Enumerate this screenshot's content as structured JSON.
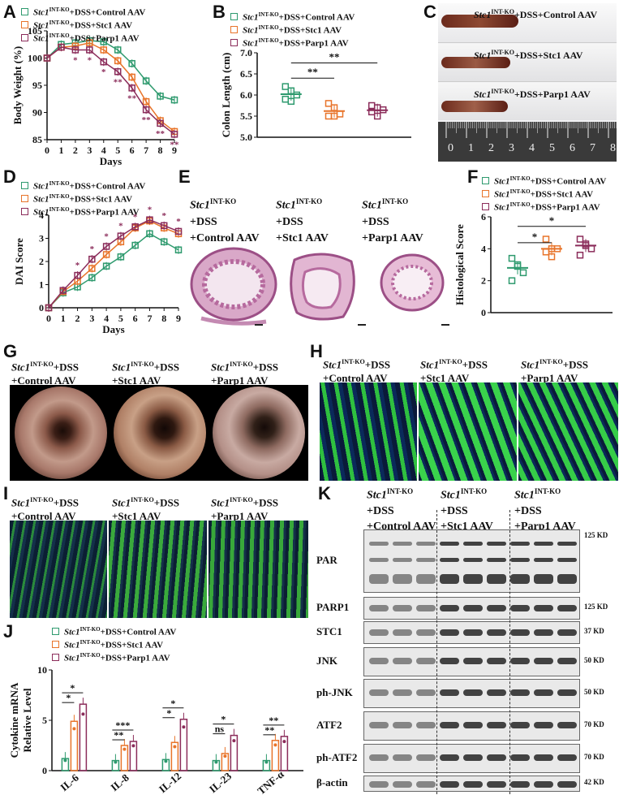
{
  "panels": {
    "A": "A",
    "B": "B",
    "C": "C",
    "D": "D",
    "E": "E",
    "F": "F",
    "G": "G",
    "H": "H",
    "I": "I",
    "J": "J",
    "K": "K"
  },
  "gene": "Stc1",
  "sup": "INT-KO",
  "legend": {
    "control": "+DSS+Control AAV",
    "stc1": "+DSS+Stc1 AAV",
    "parp1": "+DSS+Parp1 AAV"
  },
  "colors": {
    "control": "#2e9a6e",
    "stc1": "#e8742a",
    "parp1": "#8b2c5a"
  },
  "conditions": {
    "dss": "+DSS",
    "control_aav": "+Control AAV",
    "stc1_aav": "+Stc1 AAV",
    "parp1_aav": "+Parp1 AAV",
    "dss_control": "+DSS+Control AAV",
    "dss_stc1": "+DSS+Stc1 AAV",
    "dss_parp1": "+DSS+Parp1 AAV",
    "short_dss": "+DSS",
    "short_control": "+Control AAV",
    "short_stc1": "+Stc1 AAV",
    "short_parp1": "+Parp1 AAV"
  },
  "chart_data": [
    {
      "id": "A",
      "type": "line",
      "xlabel": "Days",
      "ylabel": "Body Weight (%)",
      "x": [
        0,
        1,
        2,
        3,
        4,
        5,
        6,
        7,
        8,
        9
      ],
      "ylim": [
        85,
        105
      ],
      "yticks": [
        85,
        90,
        95,
        100,
        105
      ],
      "series": [
        {
          "name": "Stc1 INT-KO+DSS+Control AAV",
          "values": [
            100,
            102.5,
            102.8,
            103.2,
            103,
            101.5,
            99,
            95.8,
            93,
            92.3
          ]
        },
        {
          "name": "Stc1 INT-KO+DSS+Stc1 AAV",
          "values": [
            100,
            102,
            102.2,
            102.8,
            101.5,
            99.5,
            96.5,
            92,
            88.5,
            86.5
          ]
        },
        {
          "name": "Stc1 INT-KO+DSS+Parp1 AAV",
          "values": [
            100,
            102,
            101.5,
            101.5,
            99.3,
            97.5,
            94.5,
            90.5,
            88,
            86
          ]
        }
      ],
      "sig_marks": [
        "*",
        "*",
        "*",
        "**",
        "**",
        "**",
        "**",
        "**"
      ]
    },
    {
      "id": "B",
      "type": "scatter",
      "ylabel": "Colon Length (cm)",
      "ylim": [
        5.0,
        7.0
      ],
      "yticks": [
        5.0,
        5.5,
        6.0,
        6.5,
        7.0
      ],
      "categories": [
        "Control",
        "Stc1",
        "Parp1"
      ],
      "points": [
        [
          6.2,
          6.1,
          6.0,
          5.9,
          5.85
        ],
        [
          5.8,
          5.7,
          5.55,
          5.5,
          5.5
        ],
        [
          5.75,
          5.7,
          5.65,
          5.6,
          5.5
        ]
      ],
      "means": [
        6.02,
        5.62,
        5.64
      ],
      "sig": [
        "**",
        "**"
      ]
    },
    {
      "id": "D",
      "type": "line",
      "xlabel": "Days",
      "ylabel": "DAI Score",
      "x": [
        0,
        1,
        2,
        3,
        4,
        5,
        6,
        7,
        8,
        9
      ],
      "ylim": [
        0,
        4
      ],
      "yticks": [
        0,
        1,
        2,
        3,
        4
      ],
      "series": [
        {
          "name": "Stc1 INT-KO+DSS+Control AAV",
          "values": [
            0,
            0.65,
            0.9,
            1.3,
            1.8,
            2.2,
            2.7,
            3.2,
            2.85,
            2.5
          ]
        },
        {
          "name": "Stc1 INT-KO+DSS+Stc1 AAV",
          "values": [
            0,
            0.7,
            1.15,
            1.7,
            2.3,
            2.85,
            3.45,
            3.75,
            3.45,
            3.2
          ]
        },
        {
          "name": "Stc1 INT-KO+DSS+Parp1 AAV",
          "values": [
            0,
            0.75,
            1.4,
            2.1,
            2.65,
            3.1,
            3.5,
            3.8,
            3.55,
            3.3
          ]
        }
      ],
      "sig_marks": [
        "*",
        "*",
        "*",
        "*",
        "*",
        "*",
        "*",
        "*"
      ]
    },
    {
      "id": "F",
      "type": "scatter",
      "ylabel": "Histological Score",
      "ylim": [
        0,
        6
      ],
      "yticks": [
        0,
        2,
        4,
        6
      ],
      "categories": [
        "Control",
        "Stc1",
        "Parp1"
      ],
      "points": [
        [
          3.4,
          2.9,
          2.5,
          2.0,
          3.0
        ],
        [
          4.6,
          4.0,
          4.0,
          3.8,
          3.5
        ],
        [
          4.6,
          4.2,
          4.0,
          3.6,
          4.3
        ]
      ],
      "means": [
        2.8,
        4.0,
        4.2
      ],
      "sig": [
        "*",
        "*"
      ]
    },
    {
      "id": "J",
      "type": "bar",
      "ylabel": "Cytokine mRNA Relative Level",
      "ylim": [
        0,
        10
      ],
      "yticks": [
        0,
        5,
        10
      ],
      "categories": [
        "IL-6",
        "IL-8",
        "IL-12",
        "IL-23",
        "TNF-α"
      ],
      "series": [
        {
          "name": "Stc1 INT-KO+DSS+Control AAV",
          "values": [
            1.2,
            1.0,
            1.1,
            1.0,
            1.0
          ]
        },
        {
          "name": "Stc1 INT-KO+DSS+Stc1 AAV",
          "values": [
            4.9,
            2.5,
            2.8,
            1.7,
            3.0
          ]
        },
        {
          "name": "Stc1 INT-KO+DSS+Parp1 AAV",
          "values": [
            6.6,
            2.9,
            5.1,
            3.5,
            3.4
          ]
        }
      ],
      "sig": [
        [
          "*",
          "*"
        ],
        [
          "***",
          "**"
        ],
        [
          "*",
          "*"
        ],
        [
          "*",
          "ns"
        ],
        [
          "**",
          "**"
        ]
      ]
    }
  ],
  "colon_ruler": {
    "ticks": [
      "0",
      "1",
      "2",
      "3",
      "4",
      "5",
      "6",
      "7",
      "8"
    ]
  },
  "western": {
    "rows": [
      "PAR",
      "PARP1",
      "STC1",
      "JNK",
      "ph-JNK",
      "ATF2",
      "ph-ATF2",
      "β-actin"
    ],
    "sizes": [
      "125 KD",
      "125 KD",
      "37 KD",
      "50 KD",
      "50 KD",
      "70 KD",
      "70 KD",
      "42 KD"
    ]
  }
}
